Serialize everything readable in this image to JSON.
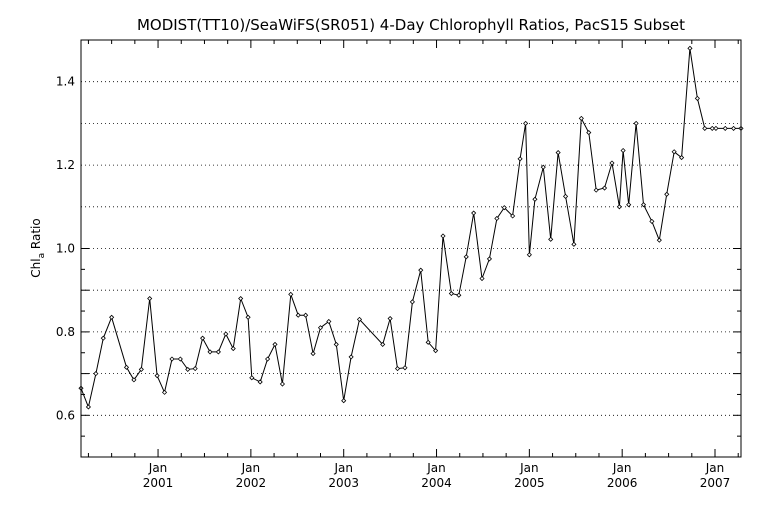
{
  "chart_data": {
    "type": "line",
    "title": "MODIST(TT10)/SeaWiFS(SR051) 4-Day Chlorophyll Ratios, PacS15 Subset",
    "ylabel_main": "Chl",
    "ylabel_sub": "a",
    "ylabel_tail": " Ratio",
    "xlim": [
      2000.17,
      2007.28
    ],
    "ylim": [
      0.5,
      1.5
    ],
    "y_ticks": [
      "0.6",
      "0.8",
      "1.0",
      "1.2",
      "1.4"
    ],
    "x_month_label": "Jan",
    "x_year_labels": [
      "2001",
      "2002",
      "2003",
      "2004",
      "2005",
      "2006",
      "2007"
    ],
    "grid": "horizontal-dotted",
    "series": [
      {
        "x": [
          2000.17,
          2000.25,
          2000.33,
          2000.41,
          2000.5,
          2000.66,
          2000.74,
          2000.82,
          2000.91,
          2000.99,
          2001.07,
          2001.15,
          2001.24,
          2001.32,
          2001.4,
          2001.48,
          2001.56,
          2001.65,
          2001.73,
          2001.81,
          2001.89,
          2001.97,
          2002.01,
          2002.1,
          2002.18,
          2002.26,
          2002.34,
          2002.43,
          2002.51,
          2002.59,
          2002.67,
          2002.75,
          2002.84,
          2002.92,
          2003.0,
          2003.08,
          2003.17,
          2003.42,
          2003.5,
          2003.58,
          2003.66,
          2003.74,
          2003.83,
          2003.91,
          2003.99,
          2004.07,
          2004.16,
          2004.24,
          2004.32,
          2004.4,
          2004.49,
          2004.57,
          2004.65,
          2004.73,
          2004.82,
          2004.9,
          2004.96,
          2005.0,
          2005.06,
          2005.15,
          2005.23,
          2005.31,
          2005.39,
          2005.48,
          2005.56,
          2005.64,
          2005.72,
          2005.81,
          2005.89,
          2005.97,
          2006.01,
          2006.07,
          2006.15,
          2006.23,
          2006.32,
          2006.4,
          2006.48,
          2006.56,
          2006.64,
          2006.73,
          2006.81,
          2006.89,
          2006.97,
          2007.01,
          2007.11,
          2007.2,
          2007.28
        ],
        "y": [
          0.665,
          0.62,
          0.7,
          0.785,
          0.835,
          0.715,
          0.685,
          0.71,
          0.88,
          0.695,
          0.655,
          0.735,
          0.735,
          0.71,
          0.712,
          0.785,
          0.752,
          0.752,
          0.795,
          0.76,
          0.88,
          0.835,
          0.69,
          0.68,
          0.735,
          0.77,
          0.675,
          0.89,
          0.84,
          0.84,
          0.748,
          0.81,
          0.825,
          0.77,
          0.635,
          0.74,
          0.83,
          0.77,
          0.832,
          0.712,
          0.714,
          0.872,
          0.948,
          0.775,
          0.755,
          1.03,
          0.892,
          0.888,
          0.98,
          1.085,
          0.928,
          0.975,
          1.072,
          1.098,
          1.078,
          1.215,
          1.3,
          0.985,
          1.118,
          1.195,
          1.022,
          1.23,
          1.125,
          1.01,
          1.312,
          1.278,
          1.14,
          1.145,
          1.205,
          1.1,
          1.235,
          1.105,
          1.3,
          1.105,
          1.065,
          1.02,
          1.13,
          1.232,
          1.218,
          1.48,
          1.36,
          1.288,
          1.288,
          1.288,
          1.288,
          1.288,
          1.288
        ]
      }
    ]
  }
}
